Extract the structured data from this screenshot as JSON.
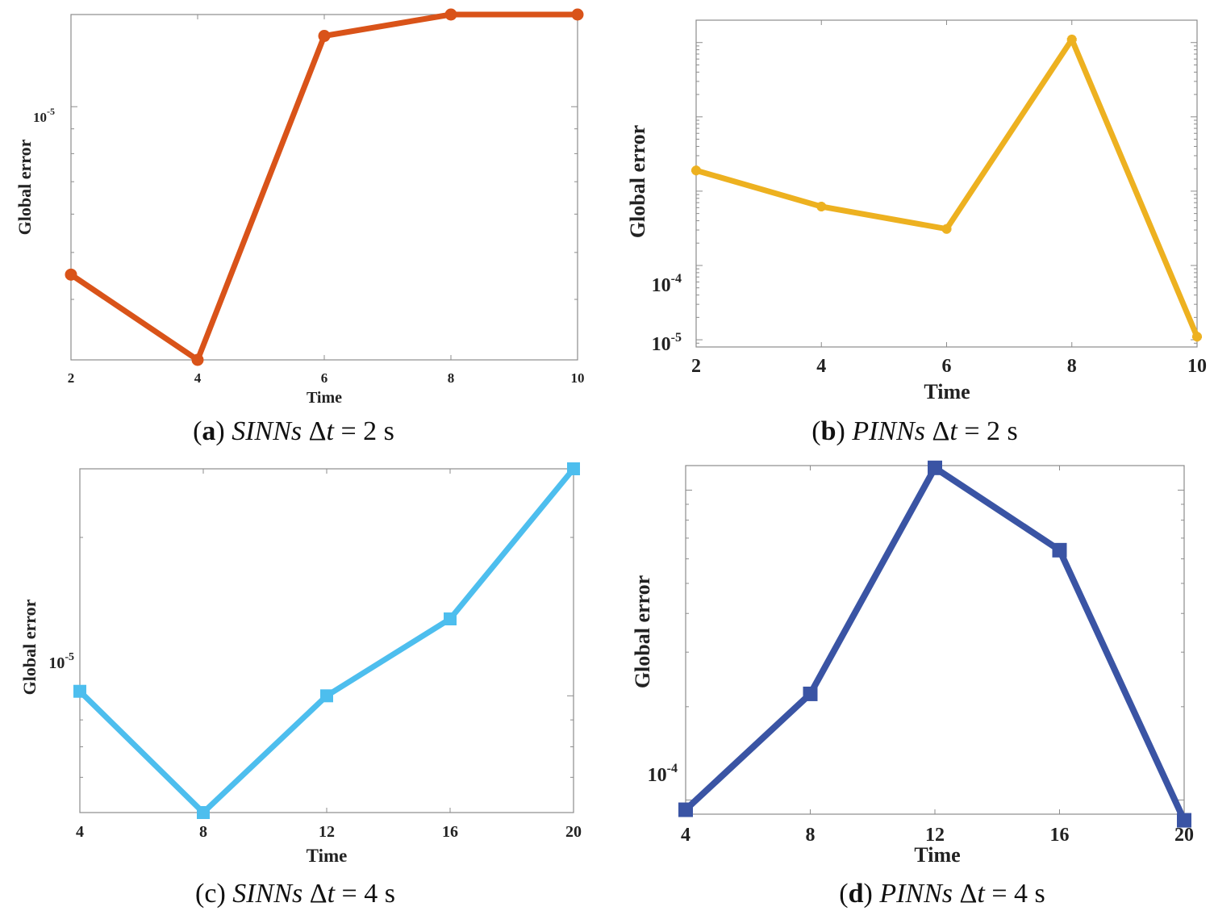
{
  "chart_data": [
    {
      "id": "a",
      "type": "line",
      "caption": {
        "letter": "a",
        "method": "SINNs",
        "dt_value": "2",
        "unit": "s"
      },
      "xlabel": "Time",
      "ylabel": "Global error",
      "yscale": "log",
      "xlim": [
        2,
        10
      ],
      "ylim": [
        3e-06,
        1.55e-05
      ],
      "xticks": [
        2,
        4,
        6,
        8,
        10
      ],
      "xtick_labels": [
        "2",
        "4",
        "6",
        "8",
        "10"
      ],
      "ytick_labels": [
        {
          "base": "10",
          "exp": "-5",
          "value": 1e-05
        }
      ],
      "marker": "circle",
      "color": "#D95319",
      "series": [
        {
          "name": "SINNs",
          "x": [
            2,
            4,
            6,
            8,
            10
          ],
          "y": [
            4.5e-06,
            3e-06,
            1.4e-05,
            1.55e-05,
            1.55e-05
          ]
        }
      ]
    },
    {
      "id": "b",
      "type": "line",
      "caption": {
        "letter": "b",
        "method": "PINNs",
        "dt_value": "2",
        "unit": "s"
      },
      "xlabel": "Time",
      "ylabel": "Global error",
      "yscale": "log",
      "xlim": [
        2,
        10
      ],
      "ylim": [
        8e-06,
        0.2
      ],
      "xticks": [
        2,
        4,
        6,
        8,
        10
      ],
      "xtick_labels": [
        "2",
        "4",
        "6",
        "8",
        "10"
      ],
      "ytick_labels": [
        {
          "base": "10",
          "exp": "-4",
          "value": 0.0001
        },
        {
          "base": "10",
          "exp": "-5",
          "value": 1e-05
        }
      ],
      "marker": "asterisk",
      "color": "#EDB120",
      "series": [
        {
          "name": "PINNs",
          "x": [
            2,
            4,
            6,
            8,
            10
          ],
          "y": [
            0.0019,
            0.00062,
            0.00031,
            0.11,
            1.1e-05
          ]
        }
      ]
    },
    {
      "id": "c",
      "type": "line",
      "caption": {
        "letter": "c",
        "method": "SINNs",
        "dt_value": "4",
        "unit": "s"
      },
      "xlabel": "Time",
      "ylabel": "Global error",
      "yscale": "log",
      "xlim": [
        4,
        20
      ],
      "ylim": [
        6e-06,
        2.7e-05
      ],
      "xticks": [
        4,
        8,
        12,
        16,
        20
      ],
      "xtick_labels": [
        "4",
        "8",
        "12",
        "16",
        "20"
      ],
      "ytick_labels": [
        {
          "base": "10",
          "exp": "-5",
          "value": 1e-05
        }
      ],
      "marker": "square",
      "color": "#4DBEEE",
      "series": [
        {
          "name": "SINNs",
          "x": [
            4,
            8,
            12,
            16,
            20
          ],
          "y": [
            1.02e-05,
            6e-06,
            1e-05,
            1.4e-05,
            2.7e-05
          ]
        }
      ]
    },
    {
      "id": "d",
      "type": "line",
      "caption": {
        "letter": "d",
        "method": "PINNs",
        "dt_value": "4",
        "unit": "s"
      },
      "xlabel": "Time",
      "ylabel": "Global error",
      "yscale": "log",
      "xlim": [
        4,
        20
      ],
      "ylim": [
        9e-05,
        0.0012
      ],
      "xticks": [
        4,
        8,
        12,
        16,
        20
      ],
      "xtick_labels": [
        "4",
        "8",
        "12",
        "16",
        "20"
      ],
      "ytick_labels": [
        {
          "base": "10",
          "exp": "-4",
          "value": 0.0001
        }
      ],
      "marker": "square",
      "color": "#3A54A4",
      "series": [
        {
          "name": "PINNs",
          "x": [
            4,
            8,
            12,
            16,
            20
          ],
          "y": [
            9.3e-05,
            0.00022,
            0.00118,
            0.00064,
            8.6e-05
          ]
        }
      ]
    }
  ]
}
